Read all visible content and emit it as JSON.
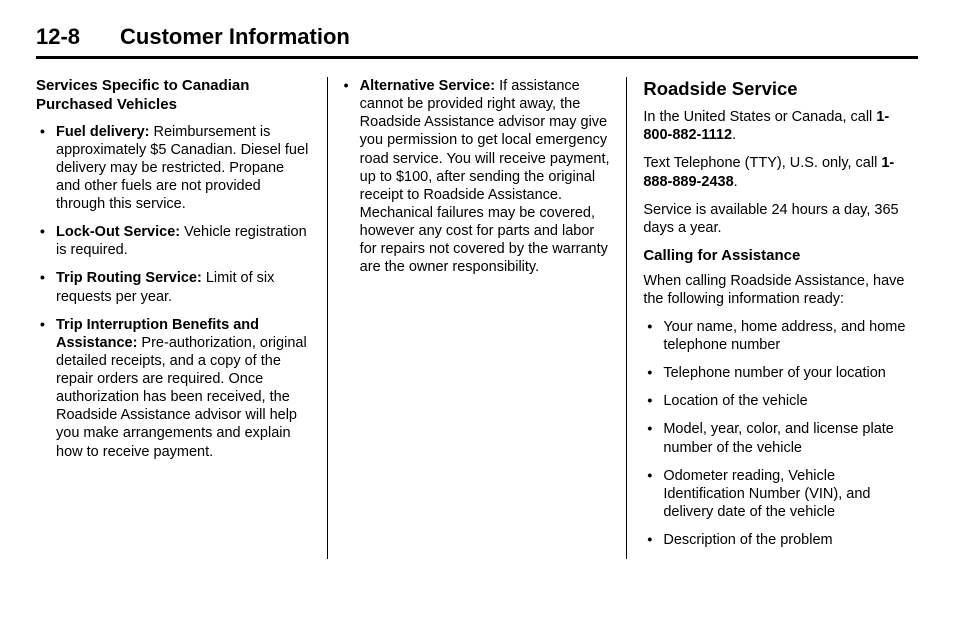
{
  "header": {
    "page_num": "12-8",
    "chapter": "Customer Information"
  },
  "col1": {
    "heading": "Services Specific to Canadian Purchased Vehicles",
    "items": [
      {
        "label": "Fuel delivery:",
        "text": "  Reimbursement is approximately $5 Canadian. Diesel fuel delivery may be restricted. Propane and other fuels are not provided through this service."
      },
      {
        "label": "Lock-Out Service:",
        "text": "  Vehicle registration is required."
      },
      {
        "label": "Trip Routing Service:",
        "text": "  Limit of six requests per year."
      },
      {
        "label": "Trip Interruption Benefits and Assistance:",
        "text": "  Pre-authorization, original detailed receipts, and a copy of the repair orders are required. Once authorization has been received, the Roadside Assistance advisor will help you make arrangements and explain how to receive payment."
      }
    ]
  },
  "col2": {
    "items": [
      {
        "label": "Alternative Service:",
        "text": "  If assistance cannot be provided right away, the Roadside Assistance advisor may give you permission to get local emergency road service. You will receive payment, up to $100, after sending the original receipt to Roadside Assistance. Mechanical failures may be covered, however any cost for parts and labor for repairs not covered by the warranty are the owner responsibility."
      }
    ]
  },
  "col3": {
    "heading": "Roadside Service",
    "intro1_a": "In the United States or Canada, call ",
    "intro1_b": "1-800-882-1112",
    "intro1_c": ".",
    "intro2_a": "Text Telephone (TTY), U.S. only, call  ",
    "intro2_b": "1-888-889-2438",
    "intro2_c": ".",
    "intro3": "Service is available 24 hours a day, 365 days a year.",
    "subheading": "Calling for Assistance",
    "sub_intro": "When calling Roadside Assistance, have the following information ready:",
    "list": [
      "Your name, home address, and home telephone number",
      "Telephone number of your location",
      "Location of the vehicle",
      "Model, year, color, and license plate number of the vehicle",
      "Odometer reading, Vehicle Identification Number (VIN), and delivery date of the vehicle",
      "Description of the problem"
    ]
  }
}
